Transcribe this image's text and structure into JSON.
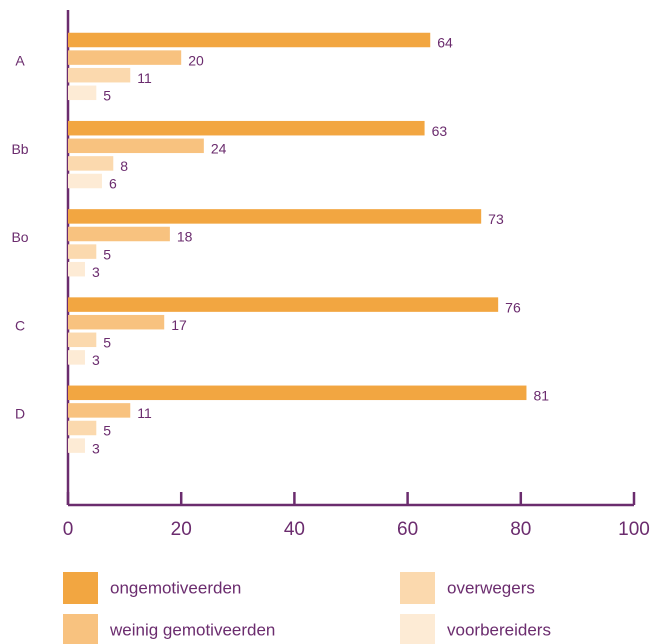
{
  "chart_data": {
    "type": "bar",
    "orientation": "horizontal",
    "categories": [
      "A",
      "Bb",
      "Bo",
      "C",
      "D"
    ],
    "series": [
      {
        "name": "ongemotiveerden",
        "color": "#f2a641",
        "values": [
          64,
          63,
          73,
          76,
          81
        ]
      },
      {
        "name": "weinig gemotiveerden",
        "color": "#f8c27f",
        "values": [
          20,
          24,
          18,
          17,
          11
        ]
      },
      {
        "name": "overwegers",
        "color": "#fbd9ae",
        "values": [
          11,
          8,
          5,
          5,
          5
        ]
      },
      {
        "name": "voorbereiders",
        "color": "#fdebd5",
        "values": [
          5,
          6,
          3,
          3,
          3
        ]
      }
    ],
    "xlim": [
      0,
      100
    ],
    "xticks": [
      0,
      20,
      40,
      60,
      80,
      100
    ],
    "grid": false,
    "legend": "bottom"
  }
}
